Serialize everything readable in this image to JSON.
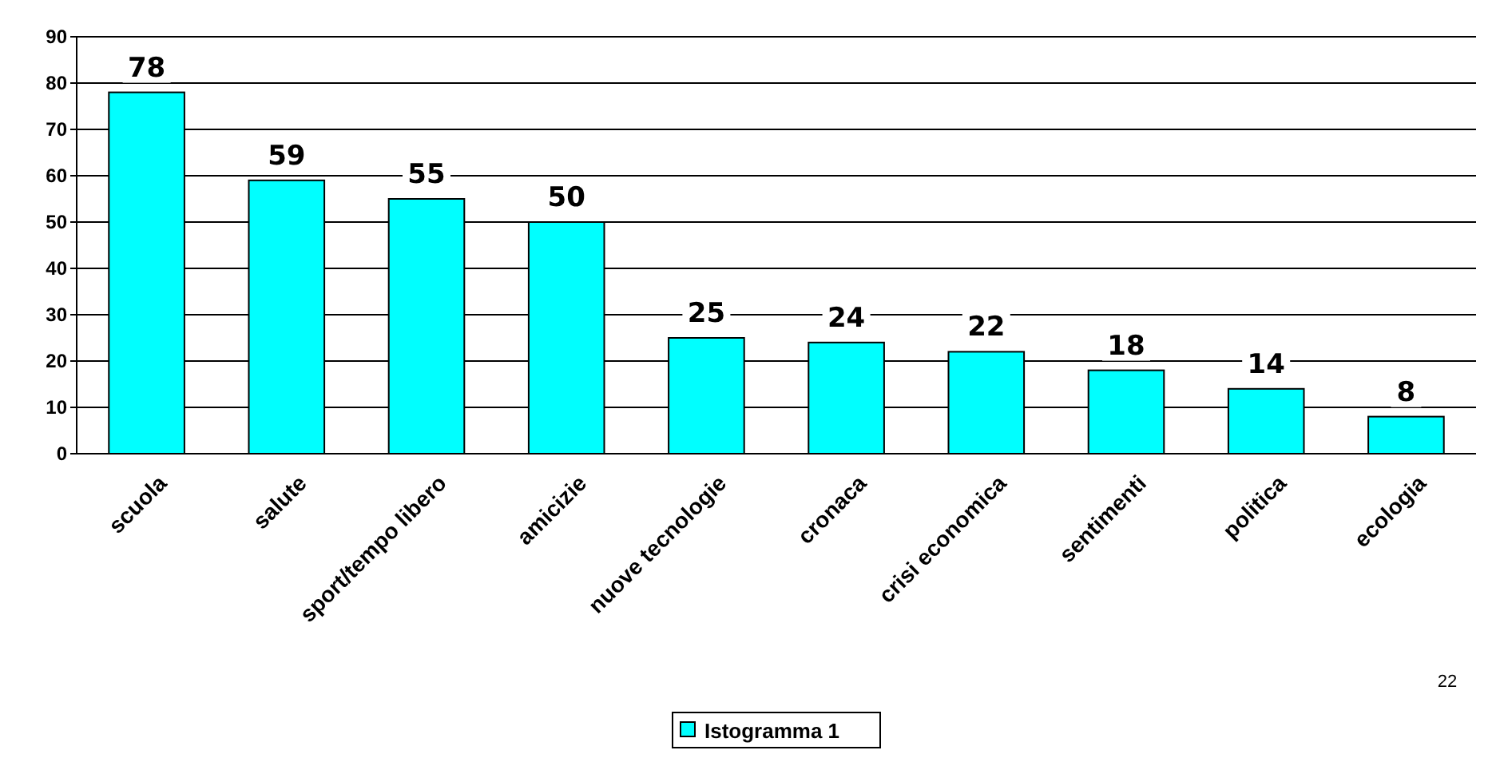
{
  "chart_data": {
    "type": "bar",
    "categories": [
      "scuola",
      "salute",
      "sport/tempo libero",
      "amicizie",
      "nuove tecnologie",
      "cronaca",
      "crisi economica",
      "sentimenti",
      "politica",
      "ecologia"
    ],
    "series": [
      {
        "name": "Istogramma 1",
        "color": "#00ffff",
        "values": [
          78,
          59,
          55,
          50,
          25,
          24,
          22,
          18,
          14,
          8
        ]
      }
    ],
    "ylim": [
      0,
      90
    ],
    "yticks": [
      0,
      10,
      20,
      30,
      40,
      50,
      60,
      70,
      80,
      90
    ],
    "grid": "y",
    "data_labels": true,
    "legend": "bottom",
    "annotations": [
      "22"
    ]
  }
}
